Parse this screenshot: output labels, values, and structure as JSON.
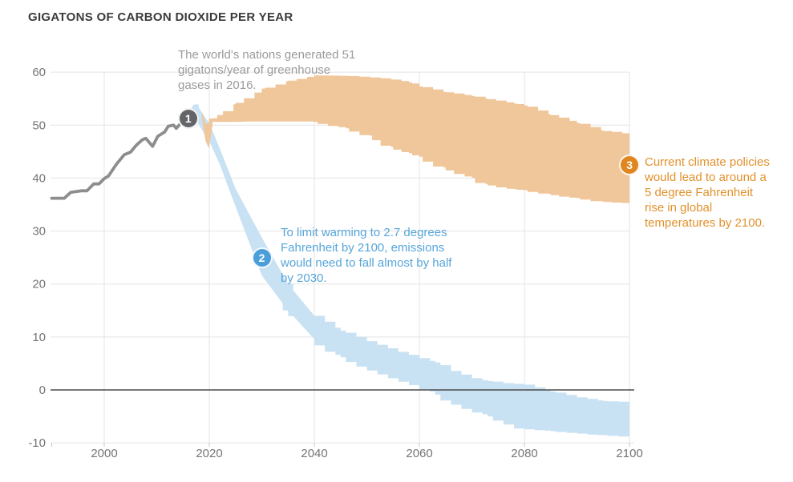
{
  "title": "GIGATONS OF CARBON DIOXIDE PER YEAR",
  "annotations": {
    "a1": {
      "number": "1",
      "text": "The world's nations generated 51\ngigatons/year of greenhouse\ngases in 2016."
    },
    "a2": {
      "number": "2",
      "text": "To limit warming to 2.7 degrees\nFahrenheit by 2100, emissions\nwould need to fall almost by half\nby 2030."
    },
    "a3": {
      "number": "3",
      "text": "Current climate policies\nwould lead to around a\n5 degree Fahrenheit\nrise in global\ntemperatures by 2100."
    }
  },
  "colors": {
    "title_text": "#3b3b3b",
    "axis_text": "#757575",
    "grid": "#e4e4e4",
    "tick": "#c9c9c9",
    "zero_line": "#4a4a4a",
    "historical_line": "#8d8d8d",
    "pledges_band": "#c9e2f3",
    "policies_band": "#f0c69b",
    "marker1_fill": "#636569",
    "marker2_fill": "#4a9ed9",
    "marker3_fill": "#e0861f",
    "annotation1_text": "#9b9b9b",
    "annotation2_text": "#57a6da",
    "annotation3_text": "#e2912c"
  },
  "chart_data": {
    "type": "area",
    "title": "GIGATONS OF CARBON DIOXIDE PER YEAR",
    "ylabel": "gigatons of carbon dioxide per year",
    "xlim": [
      1990,
      2100
    ],
    "ylim": [
      -10,
      60
    ],
    "x_ticks": [
      2000,
      2020,
      2040,
      2060,
      2080,
      2100
    ],
    "y_ticks": [
      -10,
      0,
      10,
      20,
      30,
      40,
      50,
      60
    ],
    "grid": true,
    "legend": "none",
    "series": [
      {
        "name": "emissions pathway to limit warming to 2.7F by 2100 (uncertainty band)",
        "type": "band",
        "color_key": "pledges_band",
        "points": [
          [
            2016,
            52.2,
            50.9
          ],
          [
            2017,
            53.9,
            51.6
          ],
          [
            2018,
            53.3,
            50.2
          ],
          [
            2019,
            51.8,
            48.4
          ],
          [
            2020,
            50.4,
            46.9
          ],
          [
            2022,
            45.6,
            42.6
          ],
          [
            2025,
            38.0,
            34.6
          ],
          [
            2030,
            28.8,
            21.6
          ],
          [
            2035,
            20.0,
            15.0
          ],
          [
            2040,
            14.0,
            9.6
          ],
          [
            2045,
            11.2,
            6.6
          ],
          [
            2050,
            9.2,
            4.4
          ],
          [
            2056,
            7.2,
            2.2
          ],
          [
            2060,
            6.0,
            0.9
          ],
          [
            2063,
            5.2,
            -0.3
          ],
          [
            2066,
            3.6,
            -2.0
          ],
          [
            2070,
            2.2,
            -3.6
          ],
          [
            2073,
            1.7,
            -4.6
          ],
          [
            2076,
            1.3,
            -5.8
          ],
          [
            2080,
            1.0,
            -7.3
          ],
          [
            2085,
            -0.3,
            -7.7
          ],
          [
            2090,
            -1.4,
            -8.1
          ],
          [
            2095,
            -2.1,
            -8.5
          ],
          [
            2100,
            -2.3,
            -8.8
          ]
        ]
      },
      {
        "name": "current climate policies projection (uncertainty band)",
        "type": "band",
        "color_key": "policies_band",
        "points": [
          [
            2018.6,
            52.5,
            51.4
          ],
          [
            2019.3,
            50.3,
            47.0
          ],
          [
            2019.9,
            51.2,
            45.6
          ],
          [
            2020.6,
            51.3,
            49.9
          ],
          [
            2021.5,
            51.9,
            50.6
          ],
          [
            2025,
            54.2,
            50.6
          ],
          [
            2030,
            56.9,
            50.7
          ],
          [
            2035,
            58.4,
            50.7
          ],
          [
            2040,
            59.4,
            50.7
          ],
          [
            2046,
            59.3,
            49.6
          ],
          [
            2051,
            59.0,
            48.0
          ],
          [
            2055,
            58.6,
            45.9
          ],
          [
            2058,
            58.1,
            44.9
          ],
          [
            2060,
            57.3,
            44.3
          ],
          [
            2065,
            56.2,
            42.0
          ],
          [
            2070,
            55.5,
            40.3
          ],
          [
            2073,
            54.9,
            38.9
          ],
          [
            2078,
            54.1,
            38.0
          ],
          [
            2080,
            53.7,
            37.8
          ],
          [
            2085,
            51.9,
            37.0
          ],
          [
            2090,
            50.4,
            36.3
          ],
          [
            2095,
            48.9,
            35.6
          ],
          [
            2100,
            48.3,
            35.3
          ]
        ]
      },
      {
        "name": "historical emissions 1990-2016",
        "type": "line",
        "color_key": "historical_line",
        "points": [
          [
            1990,
            36.2
          ],
          [
            1992.4,
            36.2
          ],
          [
            1993.6,
            37.3
          ],
          [
            1995.7,
            37.6
          ],
          [
            1996.7,
            37.6
          ],
          [
            1998,
            38.9
          ],
          [
            1999,
            38.9
          ],
          [
            2000,
            39.9
          ],
          [
            2000.8,
            40.4
          ],
          [
            2002.3,
            42.6
          ],
          [
            2003.8,
            44.4
          ],
          [
            2005,
            44.9
          ],
          [
            2006.1,
            46.2
          ],
          [
            2007.2,
            47.2
          ],
          [
            2007.9,
            47.5
          ],
          [
            2009.2,
            46.0
          ],
          [
            2010.2,
            47.9
          ],
          [
            2011.5,
            48.7
          ],
          [
            2012.2,
            49.8
          ],
          [
            2013.2,
            50.0
          ],
          [
            2013.7,
            49.4
          ],
          [
            2014.7,
            50.5
          ],
          [
            2016,
            51.2
          ]
        ]
      }
    ],
    "markers": [
      {
        "id": "m1",
        "label": "1",
        "x": 2016,
        "y": 51.2,
        "color_key": "marker1_fill"
      },
      {
        "id": "m2",
        "label": "2",
        "x": 2030,
        "y": 25.0,
        "color_key": "marker2_fill"
      },
      {
        "id": "m3",
        "label": "3",
        "x": 2100,
        "y": 42.5,
        "color_key": "marker3_fill"
      }
    ]
  }
}
